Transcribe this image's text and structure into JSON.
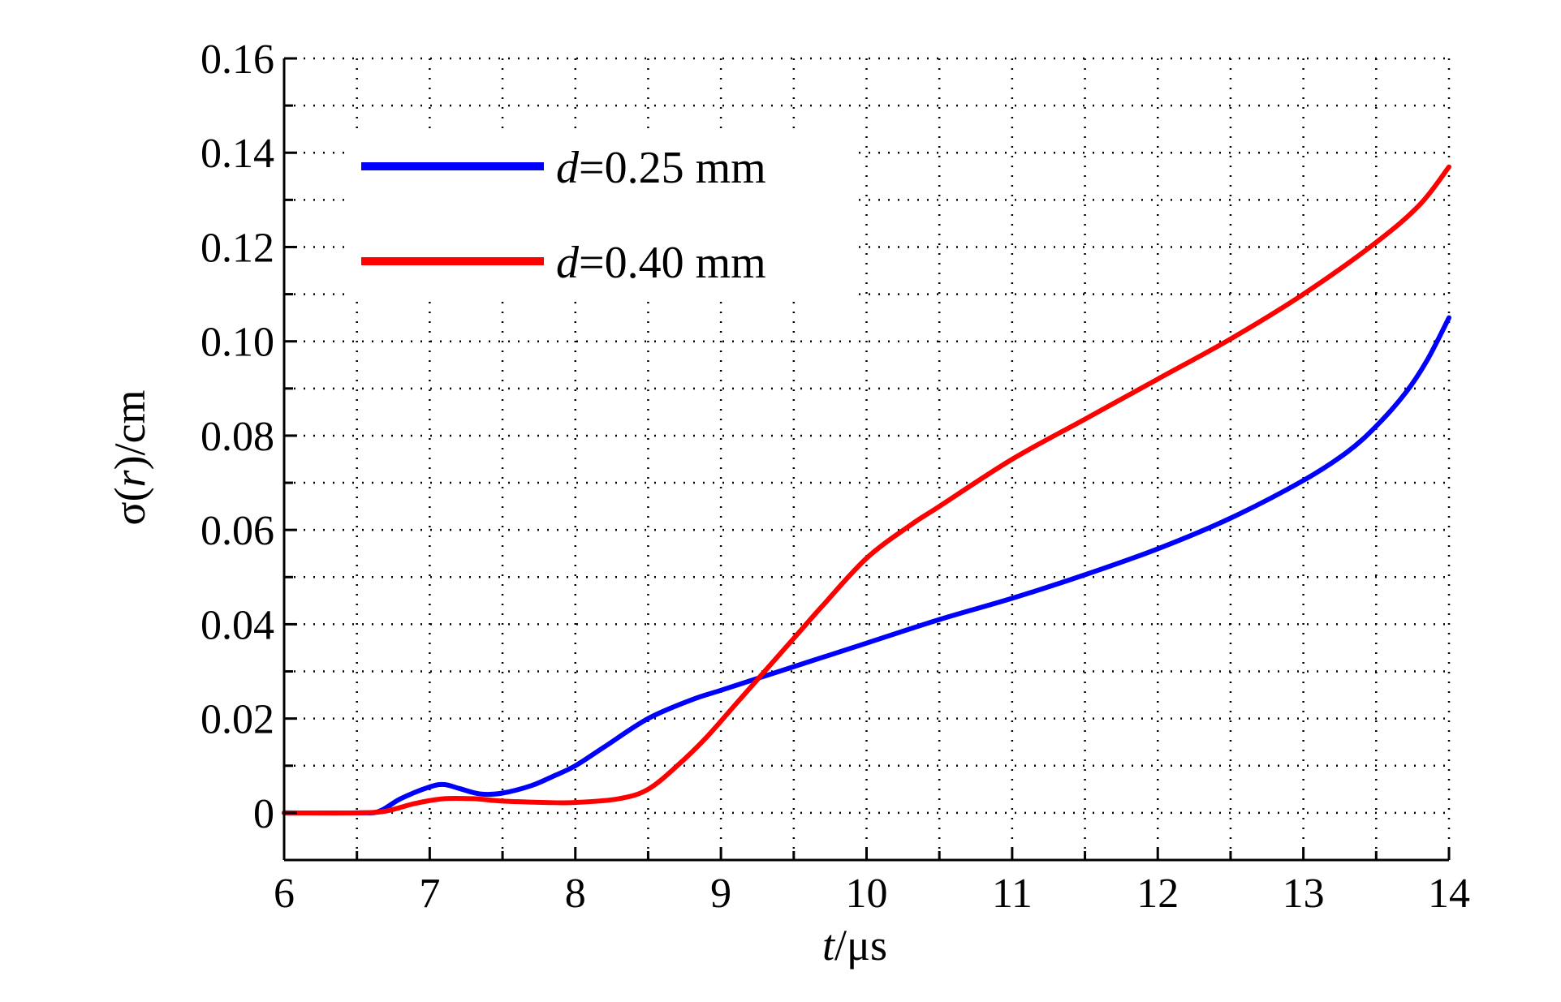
{
  "chart_data": {
    "type": "line",
    "title": "",
    "xlabel": {
      "italic": "t",
      "rest": "/μs"
    },
    "ylabel": {
      "pre": "σ(",
      "italic": "r",
      "post": ")/cm"
    },
    "xlim": [
      6,
      14
    ],
    "ylim": [
      -0.01,
      0.16
    ],
    "xticks": [
      6,
      7,
      8,
      9,
      10,
      11,
      12,
      13,
      14
    ],
    "xtick_labels": [
      "6",
      "7",
      "8",
      "9",
      "10",
      "11",
      "12",
      "13",
      "14"
    ],
    "yticks": [
      0,
      0.02,
      0.04,
      0.06,
      0.08,
      0.1,
      0.12,
      0.14,
      0.16
    ],
    "ytick_labels": [
      "0",
      "0.02",
      "0.04",
      "0.06",
      "0.08",
      "0.10",
      "0.12",
      "0.14",
      "0.16"
    ],
    "grid": true,
    "legend_position": "top-left",
    "series": [
      {
        "name": "d=0.25 mm",
        "name_italic": "d",
        "name_rest": "=0.25 mm",
        "color": "#0000ff",
        "x": [
          6.0,
          6.5,
          6.65,
          6.8,
          7.0,
          7.1,
          7.2,
          7.35,
          7.5,
          7.7,
          7.85,
          8.0,
          8.2,
          8.5,
          8.8,
          9.0,
          9.3,
          9.6,
          10.0,
          10.5,
          11.0,
          11.5,
          12.0,
          12.5,
          13.0,
          13.3,
          13.5,
          13.7,
          13.85,
          14.0
        ],
        "y": [
          0.0,
          0.0,
          0.0003,
          0.003,
          0.0055,
          0.006,
          0.0052,
          0.004,
          0.0042,
          0.0058,
          0.0078,
          0.01,
          0.014,
          0.02,
          0.024,
          0.026,
          0.029,
          0.032,
          0.036,
          0.041,
          0.0455,
          0.0505,
          0.056,
          0.0625,
          0.0705,
          0.0765,
          0.082,
          0.089,
          0.096,
          0.105
        ]
      },
      {
        "name": "d=0.40 mm",
        "name_italic": "d",
        "name_rest": "=0.40 mm",
        "color": "#ff0000",
        "x": [
          6.0,
          6.5,
          6.7,
          6.9,
          7.1,
          7.3,
          7.5,
          7.8,
          8.0,
          8.3,
          8.5,
          8.7,
          8.9,
          9.1,
          9.3,
          9.5,
          9.7,
          10.0,
          10.3,
          10.5,
          11.0,
          11.5,
          12.0,
          12.5,
          13.0,
          13.5,
          13.8,
          14.0
        ],
        "y": [
          0.0,
          0.0,
          0.0004,
          0.002,
          0.003,
          0.003,
          0.0025,
          0.0022,
          0.0022,
          0.003,
          0.005,
          0.01,
          0.016,
          0.023,
          0.03,
          0.037,
          0.044,
          0.054,
          0.061,
          0.065,
          0.075,
          0.0835,
          0.092,
          0.1005,
          0.11,
          0.121,
          0.129,
          0.137
        ]
      }
    ]
  }
}
